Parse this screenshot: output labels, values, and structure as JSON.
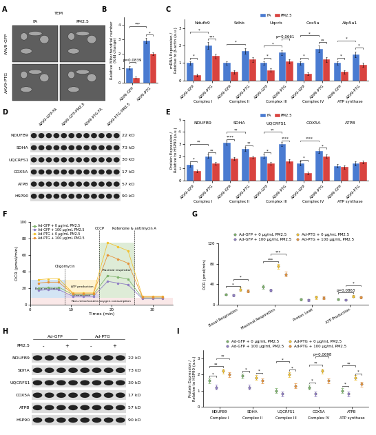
{
  "tem": {
    "title": "A",
    "label": "TEM",
    "columns": [
      "FA",
      "PM2.5"
    ],
    "rows": [
      "AAV9-GFP",
      "AAV9-PTG"
    ]
  },
  "blots": [
    {
      "title": "D",
      "columns": [
        "AAV9-GFP-FA",
        "AAV9-GFP-PM2.5",
        "AAV9-PTG-FA",
        "AAV9-PTG-PM2.5"
      ],
      "rows": [
        {
          "name": "NDUFB9",
          "size": "22 kD"
        },
        {
          "name": "SDHA",
          "size": "73 kD"
        },
        {
          "name": "UQCRFS1",
          "size": "30 kD"
        },
        {
          "name": "COX5A",
          "size": "17 kD"
        },
        {
          "name": "ATPB",
          "size": "57 kD"
        },
        {
          "name": "HSP90",
          "size": "90 kD"
        }
      ]
    },
    {
      "title": "H",
      "groups": [
        "Ad-GFP",
        "Ad-PTG"
      ],
      "treatment": "PM2.5",
      "signs": [
        "-",
        "+",
        "-",
        "+"
      ],
      "rows": [
        {
          "name": "NDUFB9",
          "size": "22 kD"
        },
        {
          "name": "SDHA",
          "size": "73 kD"
        },
        {
          "name": "UQCRFS1",
          "size": "30 kD"
        },
        {
          "name": "COX5A",
          "size": "17 kD"
        },
        {
          "name": "ATPB",
          "size": "57 kD"
        },
        {
          "name": "HSP90",
          "size": "90 kD"
        }
      ]
    }
  ],
  "chart_data": [
    {
      "title": "B",
      "type": "bar",
      "categories": [
        "AAV9-GFP",
        "AAV9-PTG"
      ],
      "series": [
        {
          "color": "#4a7bd1",
          "values": [
            1.0,
            2.9
          ],
          "errors": [
            0.12,
            0.2
          ]
        },
        {
          "color": "#d9433f",
          "values": [
            0.35,
            2.0
          ],
          "errors": [
            0.08,
            0.1
          ]
        }
      ],
      "y_label": "Relative Mitochondrial number\n(fold change)",
      "ylim": [
        0,
        4.5
      ],
      "yticks": [
        0,
        1,
        2,
        3,
        4
      ],
      "annotations": [
        {
          "text": "p=0.0839",
          "from": 0,
          "to": 1,
          "y": 1.4
        },
        {
          "text": "*",
          "from": 2,
          "to": 3,
          "y": 3.3
        },
        {
          "text": "***",
          "from": 0,
          "to": 2,
          "y": 3.9
        }
      ]
    },
    {
      "title": "C",
      "type": "bar",
      "categories": [
        "AAV9-GFP",
        "AAV9-PTG",
        "AAV9-GFP",
        "AAV9-PTG",
        "AAV9-GFP",
        "AAV9-PTG",
        "AAV9-GFP",
        "AAV9-PTG",
        "AAV9-GFP",
        "AAV9-PTG"
      ],
      "groups": [
        {
          "name": "Ndufb9",
          "complex": "Complex I"
        },
        {
          "name": "Sdhb",
          "complex": "Complex II"
        },
        {
          "name": "Uqcrb",
          "complex": "Complex III"
        },
        {
          "name": "Cox5a",
          "complex": "Complex IV"
        },
        {
          "name": "Atp5a1",
          "complex": "ATP synthase"
        }
      ],
      "series": [
        {
          "name": "FA",
          "color": "#4a7bd1",
          "values": [
            1.0,
            2.0,
            1.0,
            1.7,
            1.0,
            1.6,
            1.0,
            1.8,
            1.0,
            1.5
          ],
          "errors": [
            0.1,
            0.2,
            0.1,
            0.15,
            0.1,
            0.15,
            0.1,
            0.2,
            0.1,
            0.15
          ]
        },
        {
          "name": "PM2.5",
          "color": "#d9433f",
          "values": [
            0.3,
            1.4,
            0.5,
            1.2,
            0.6,
            1.1,
            0.4,
            1.2,
            0.5,
            0.9
          ],
          "errors": [
            0.08,
            0.15,
            0.1,
            0.15,
            0.1,
            0.12,
            0.08,
            0.15,
            0.1,
            0.12
          ]
        }
      ],
      "y_label": "mRNA Expression /\nRelative to β-actin (a.u.)",
      "ylim": [
        0,
        3.5
      ],
      "yticks": [
        0,
        1,
        2,
        3
      ],
      "legend": "lower center",
      "annotations": [
        {
          "text": "*",
          "from": 0,
          "to": 1,
          "y": 1.3
        },
        {
          "text": "***",
          "from": 2,
          "to": 3,
          "y": 2.4
        },
        {
          "text": "*",
          "from": 0,
          "to": 2,
          "y": 2.8
        },
        {
          "text": "*",
          "from": 4,
          "to": 6,
          "y": 2.1
        },
        {
          "text": "*",
          "from": 8,
          "to": 9,
          "y": 1.3
        },
        {
          "text": "*",
          "from": 8,
          "to": 10,
          "y": 2.0
        },
        {
          "text": "p=0.0661",
          "from": 10,
          "to": 11,
          "y": 2.4
        },
        {
          "text": "*",
          "from": 12,
          "to": 13,
          "y": 1.3
        },
        {
          "text": "**",
          "from": 14,
          "to": 15,
          "y": 2.2
        },
        {
          "text": "*",
          "from": 12,
          "to": 14,
          "y": 2.6
        },
        {
          "text": "*",
          "from": 16,
          "to": 17,
          "y": 1.3
        },
        {
          "text": "*",
          "from": 18,
          "to": 19,
          "y": 1.9
        },
        {
          "text": "*",
          "from": 16,
          "to": 18,
          "y": 2.3
        }
      ]
    },
    {
      "title": "E",
      "type": "bar",
      "categories": [
        "AAV9-GFP",
        "AAV9-PTG",
        "AAV9-GFP",
        "AAV9-PTG",
        "AAV9-GFP",
        "AAV9-PTG",
        "AAV9-GFP",
        "AAV9-PTG",
        "AAV9-GFP",
        "AAV9-PTG"
      ],
      "groups": [
        {
          "name": "NDUFB9",
          "complex": "Complex I"
        },
        {
          "name": "SDHA",
          "complex": "Complex II"
        },
        {
          "name": "UQCRFS1",
          "complex": "Complex III"
        },
        {
          "name": "COX5A",
          "complex": "Complex IV"
        },
        {
          "name": "ATPB",
          "complex": "ATP synthase"
        }
      ],
      "series": [
        {
          "name": "FA",
          "color": "#4a7bd1",
          "values": [
            1.3,
            2.0,
            3.1,
            2.6,
            2.0,
            3.0,
            1.4,
            2.4,
            1.2,
            1.4
          ],
          "errors": [
            0.15,
            0.15,
            0.15,
            0.15,
            0.15,
            0.15,
            0.15,
            0.15,
            0.15,
            0.15
          ]
        },
        {
          "name": "PM2.5",
          "color": "#d9433f",
          "values": [
            0.8,
            1.4,
            1.8,
            1.9,
            1.4,
            1.6,
            0.6,
            2.0,
            1.1,
            1.5
          ],
          "errors": [
            0.12,
            0.12,
            0.12,
            0.12,
            0.12,
            0.12,
            0.12,
            0.12,
            0.12,
            0.12
          ]
        }
      ],
      "y_label": "Protein Expression /\nRelative to HSP90 (a.u.)",
      "ylim": [
        0,
        5
      ],
      "yticks": [
        0,
        1,
        2,
        3,
        4,
        5
      ],
      "legend": "lower center",
      "annotations": [
        {
          "text": "*",
          "from": 0,
          "to": 1,
          "y": 1.6
        },
        {
          "text": "**",
          "from": 2,
          "to": 3,
          "y": 2.3
        },
        {
          "text": "**",
          "from": 0,
          "to": 2,
          "y": 3.0
        },
        {
          "text": "****",
          "from": 4,
          "to": 5,
          "y": 3.4
        },
        {
          "text": "**",
          "from": 6,
          "to": 7,
          "y": 2.9
        },
        {
          "text": "**",
          "from": 4,
          "to": 6,
          "y": 4.0
        },
        {
          "text": "*",
          "from": 8,
          "to": 9,
          "y": 2.3
        },
        {
          "text": "****",
          "from": 10,
          "to": 11,
          "y": 3.3
        },
        {
          "text": "**",
          "from": 8,
          "to": 10,
          "y": 4.0
        },
        {
          "text": "*",
          "from": 12,
          "to": 13,
          "y": 1.7
        },
        {
          "text": "*",
          "from": 14,
          "to": 15,
          "y": 2.7
        },
        {
          "text": "****",
          "from": 12,
          "to": 14,
          "y": 3.3
        }
      ]
    },
    {
      "title": "F",
      "type": "line",
      "x": [
        2,
        4.5,
        7,
        10.5,
        13,
        15.5,
        19,
        21.5,
        24,
        27.5,
        30,
        32.5
      ],
      "series": [
        {
          "name": "Ad-GFP + 0 μg/mL PM2.5",
          "color": "#7cb26a",
          "values": [
            20,
            21,
            21,
            12,
            12,
            12,
            35,
            33,
            31,
            8,
            8,
            8
          ]
        },
        {
          "name": "Ad-GFP + 100 μg/mL PM2.5",
          "color": "#8e7cc3",
          "values": [
            17,
            18,
            18,
            10,
            10,
            10,
            28,
            26,
            24,
            7,
            7,
            7
          ]
        },
        {
          "name": "Ad-PTG + 0 μg/mL PM2.5",
          "color": "#f1c232",
          "values": [
            30,
            31,
            31,
            14,
            14,
            14,
            75,
            70,
            65,
            10,
            10,
            10
          ]
        },
        {
          "name": "Ad-PTG + 100 μg/mL PM2.5",
          "color": "#e69138",
          "values": [
            26,
            27,
            27,
            13,
            13,
            13,
            60,
            55,
            50,
            9,
            9,
            9
          ]
        }
      ],
      "x_label": "Times (min)",
      "y_label": "OCR (pmol/min)",
      "xlim": [
        0,
        35
      ],
      "xticks": [
        0,
        10,
        20,
        30
      ],
      "ylim": [
        0,
        100
      ],
      "yticks": [
        0,
        20,
        40,
        60,
        80,
        100
      ],
      "legend": "upper left",
      "marker": "circle",
      "injections": [
        {
          "text": "Oligomycin",
          "x": 8.5,
          "y": 44
        },
        {
          "text": "CCCP",
          "x": 17,
          "y": 90
        },
        {
          "text": "Rotenone & antimycin A",
          "x": 25.5,
          "y": 90
        }
      ],
      "regions": [
        {
          "text": "Basal respiration",
          "x": [
            0,
            8.5
          ],
          "y": [
            8,
            30
          ],
          "color": "#9fc5e8"
        },
        {
          "text": "Proton leak",
          "x": [
            8.5,
            17
          ],
          "y": [
            8,
            13
          ],
          "color": "#b4a7d6"
        },
        {
          "text": "ATP production",
          "x": [
            8.5,
            17
          ],
          "y": [
            13,
            30
          ],
          "color": "#ffe599"
        },
        {
          "text": "Maximal respiration",
          "x": [
            17,
            25.5
          ],
          "y": [
            8,
            75
          ],
          "color": "#b6d7a8"
        },
        {
          "text": "Non-mitochondria oxygen consumption",
          "x": [
            0,
            35
          ],
          "y": [
            0,
            8
          ],
          "color": "#f4cccc"
        }
      ]
    },
    {
      "title": "G",
      "type": "scatter",
      "categories": [
        "Basal Respiration",
        "Maximal Respiration",
        "Proton Leak",
        "ATP Production"
      ],
      "marker": "circle",
      "series": [
        {
          "name": "Ad-GFP + 0 μg/mL PM2.5",
          "color": "#7cb26a",
          "values": [
            20,
            35,
            10,
            10
          ],
          "errors": [
            2,
            4,
            2,
            1.5
          ]
        },
        {
          "name": "Ad-GFP + 100 μg/mL PM2.5",
          "color": "#8e7cc3",
          "values": [
            18,
            28,
            9,
            9
          ],
          "errors": [
            2,
            3,
            2,
            1.5
          ]
        },
        {
          "name": "Ad-PTG + 0 μg/mL PM2.5",
          "color": "#f1c232",
          "values": [
            30,
            75,
            14,
            16
          ],
          "errors": [
            3,
            5,
            3,
            2
          ]
        },
        {
          "name": "Ad-PTG + 100 μg/mL PM2.5",
          "color": "#e69138",
          "values": [
            27,
            60,
            13,
            14
          ],
          "errors": [
            3,
            5,
            3,
            2
          ]
        }
      ],
      "y_label": "OCR (pmol/min)",
      "ylim": [
        0,
        120
      ],
      "yticks": [
        0,
        40,
        80,
        120
      ],
      "legend": "lower center",
      "annotations": [
        {
          "text": "*",
          "from": 0,
          "to": 2,
          "y": 36
        },
        {
          "text": "*",
          "from": 1,
          "to": 3,
          "y": 50
        },
        {
          "text": "***",
          "from": 4,
          "to": 6,
          "y": 85
        },
        {
          "text": "***",
          "from": 5,
          "to": 7,
          "y": 100
        },
        {
          "text": "p=0.0863",
          "from": 12,
          "to": 14,
          "y": 24
        },
        {
          "text": "*",
          "from": 13,
          "to": 15,
          "y": 38
        }
      ]
    },
    {
      "title": "I",
      "type": "scatter",
      "categories": [
        "NDUFB9",
        "SDHA",
        "UQCRFS1",
        "COX5A",
        "ATPB"
      ],
      "complexes": [
        "Complex I",
        "Complex II",
        "Complex III",
        "Complex IV",
        "ATP synthase"
      ],
      "marker": "circle",
      "series": [
        {
          "name": "Ad-GFP + 0 μg/mL PM2.5",
          "color": "#7cb26a",
          "values": [
            1.6,
            1.9,
            1.0,
            1.2,
            1.0
          ],
          "errors": [
            0.15,
            0.15,
            0.15,
            0.15,
            0.15
          ]
        },
        {
          "name": "Ad-GFP + 100 μg/mL PM2.5",
          "color": "#8e7cc3",
          "values": [
            1.2,
            1.2,
            0.8,
            0.8,
            0.8
          ],
          "errors": [
            0.15,
            0.15,
            0.15,
            0.15,
            0.15
          ]
        },
        {
          "name": "Ad-PTG + 0 μg/mL PM2.5",
          "color": "#f1c232",
          "values": [
            2.2,
            1.8,
            2.0,
            2.2,
            1.8
          ],
          "errors": [
            0.15,
            0.15,
            0.15,
            0.15,
            0.15
          ]
        },
        {
          "name": "Ad-PTG + 100 μg/mL PM2.5",
          "color": "#e69138",
          "values": [
            2.0,
            1.6,
            1.3,
            1.6,
            1.4
          ],
          "errors": [
            0.15,
            0.15,
            0.15,
            0.15,
            0.15
          ]
        }
      ],
      "y_label": "Protein Expression /\nRelative to HSP90 (a.u.)",
      "ylim": [
        0,
        3.5
      ],
      "yticks": [
        0,
        1,
        2,
        3
      ],
      "legend": "lower center",
      "annotations": [
        {
          "text": "*",
          "from": 0,
          "to": 1,
          "y": 1.9
        },
        {
          "text": "**",
          "from": 0,
          "to": 2,
          "y": 2.5
        },
        {
          "text": "**",
          "from": 1,
          "to": 3,
          "y": 3.0
        },
        {
          "text": "*",
          "from": 4,
          "to": 5,
          "y": 2.2
        },
        {
          "text": "*",
          "from": 6,
          "to": 7,
          "y": 2.1
        },
        {
          "text": "*",
          "from": 10,
          "to": 11,
          "y": 2.3
        },
        {
          "text": "*",
          "from": 8,
          "to": 10,
          "y": 2.8
        },
        {
          "text": "*",
          "from": 12,
          "to": 13,
          "y": 1.5
        },
        {
          "text": "**",
          "from": 12,
          "to": 14,
          "y": 2.6
        },
        {
          "text": "p=0.0698",
          "from": 13,
          "to": 15,
          "y": 3.1
        },
        {
          "text": "*",
          "from": 16,
          "to": 17,
          "y": 1.3
        },
        {
          "text": "*",
          "from": 18,
          "to": 19,
          "y": 2.05
        },
        {
          "text": "**",
          "from": 16,
          "to": 18,
          "y": 2.55
        }
      ]
    }
  ]
}
